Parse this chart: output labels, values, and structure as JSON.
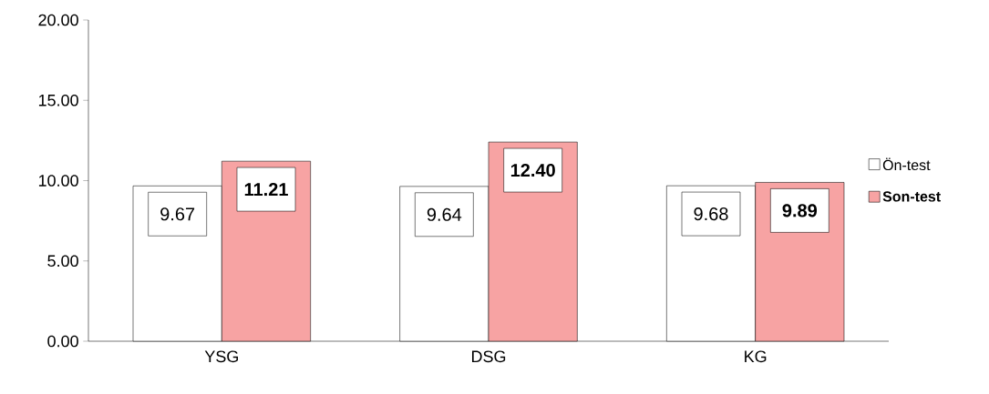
{
  "chart_data": {
    "type": "bar",
    "categories": [
      "YSG",
      "DSG",
      "KG"
    ],
    "series": [
      {
        "name": "Ön-test",
        "color": "#ffffff",
        "values": [
          9.67,
          9.64,
          9.68
        ],
        "value_labels": [
          "9.67",
          "9.64",
          "9.68"
        ]
      },
      {
        "name": "Son-test",
        "color": "#f7a3a3",
        "values": [
          11.21,
          12.4,
          9.89
        ],
        "value_labels": [
          "11.21",
          "12.40",
          "9.89"
        ]
      }
    ],
    "ylim": [
      0,
      20
    ],
    "yticks": [
      {
        "value": 0,
        "label": "0.00"
      },
      {
        "value": 5,
        "label": "5.00"
      },
      {
        "value": 10,
        "label": "10.00"
      },
      {
        "value": 15,
        "label": "15.00"
      },
      {
        "value": 20,
        "label": "20.00"
      }
    ],
    "legend": "right",
    "data_labels": true,
    "grid": false
  }
}
